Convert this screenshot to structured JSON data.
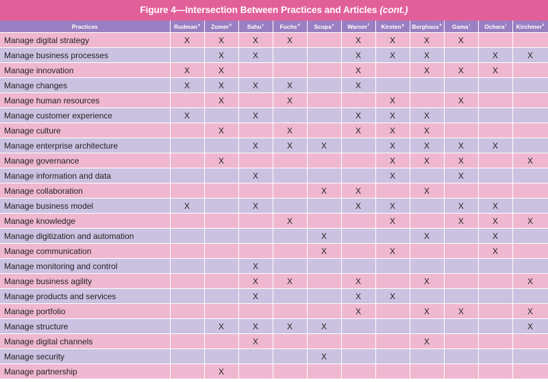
{
  "figure": {
    "title_main": "Figure 4—Intersection Between Practices and Articles",
    "title_cont": "(cont.)"
  },
  "table": {
    "columns": [
      {
        "label": "Practices",
        "sup": ""
      },
      {
        "label": "Rudman",
        "sup": "a"
      },
      {
        "label": "Zomer",
        "sup": "b"
      },
      {
        "label": "Sahu",
        "sup": "c"
      },
      {
        "label": "Fuchs",
        "sup": "d"
      },
      {
        "label": "Scupa",
        "sup": "e"
      },
      {
        "label": "Warner",
        "sup": "f"
      },
      {
        "label": "Kirsten",
        "sup": "g"
      },
      {
        "label": "Berghaus",
        "sup": "h"
      },
      {
        "label": "Gama",
        "sup": "i"
      },
      {
        "label": "Ochara",
        "sup": "j"
      },
      {
        "label": "Kirchmer",
        "sup": "k"
      }
    ],
    "rows": [
      {
        "practice": "Manage digital strategy",
        "marks": [
          "X",
          "X",
          "X",
          "X",
          "",
          "X",
          "X",
          "X",
          "X",
          "",
          ""
        ]
      },
      {
        "practice": "Manage business processes",
        "marks": [
          "",
          "X",
          "X",
          "",
          "",
          "X",
          "X",
          "X",
          "",
          "X",
          "X"
        ]
      },
      {
        "practice": "Manage innovation",
        "marks": [
          "X",
          "X",
          "",
          "",
          "",
          "X",
          "",
          "X",
          "X",
          "X",
          ""
        ]
      },
      {
        "practice": "Manage changes",
        "marks": [
          "X",
          "X",
          "X",
          "X",
          "",
          "X",
          "",
          "",
          "",
          "",
          ""
        ]
      },
      {
        "practice": "Manage human resources",
        "marks": [
          "",
          "X",
          "",
          "X",
          "",
          "",
          "X",
          "",
          "X",
          "",
          ""
        ]
      },
      {
        "practice": "Manage customer experience",
        "marks": [
          "X",
          "",
          "X",
          "",
          "",
          "X",
          "X",
          "X",
          "",
          "",
          ""
        ]
      },
      {
        "practice": "Manage culture",
        "marks": [
          "",
          "X",
          "",
          "X",
          "",
          "X",
          "X",
          "X",
          "",
          "",
          ""
        ]
      },
      {
        "practice": "Manage enterprise architecture",
        "marks": [
          "",
          "",
          "X",
          "X",
          "X",
          "",
          "X",
          "X",
          "X",
          "X",
          ""
        ]
      },
      {
        "practice": "Manage governance",
        "marks": [
          "",
          "X",
          "",
          "",
          "",
          "",
          "X",
          "X",
          "X",
          "",
          "X"
        ]
      },
      {
        "practice": "Manage information and data",
        "marks": [
          "",
          "",
          "X",
          "",
          "",
          "",
          "X",
          "",
          "X",
          "",
          ""
        ]
      },
      {
        "practice": "Manage collaboration",
        "marks": [
          "",
          "",
          "",
          "",
          "X",
          "X",
          "",
          "X",
          "",
          "",
          ""
        ]
      },
      {
        "practice": "Manage business model",
        "marks": [
          "X",
          "",
          "X",
          "",
          "",
          "X",
          "X",
          "",
          "X",
          "X",
          ""
        ]
      },
      {
        "practice": "Manage knowledge",
        "marks": [
          "",
          "",
          "",
          "X",
          "",
          "",
          "X",
          "",
          "X",
          "X",
          "X"
        ]
      },
      {
        "practice": "Manage digitization and automation",
        "marks": [
          "",
          "",
          "",
          "",
          "X",
          "",
          "",
          "X",
          "",
          "X",
          ""
        ]
      },
      {
        "practice": "Manage communication",
        "marks": [
          "",
          "",
          "",
          "",
          "X",
          "",
          "X",
          "",
          "",
          "X",
          ""
        ]
      },
      {
        "practice": "Manage monitoring and control",
        "marks": [
          "",
          "",
          "X",
          "",
          "",
          "",
          "",
          "",
          "",
          "",
          ""
        ]
      },
      {
        "practice": "Manage business agility",
        "marks": [
          "",
          "",
          "X",
          "X",
          "",
          "X",
          "",
          "X",
          "",
          "",
          "X"
        ]
      },
      {
        "practice": "Manage products and services",
        "marks": [
          "",
          "",
          "X",
          "",
          "",
          "X",
          "X",
          "",
          "",
          "",
          ""
        ]
      },
      {
        "practice": "Manage portfolio",
        "marks": [
          "",
          "",
          "",
          "",
          "",
          "X",
          "",
          "X",
          "X",
          "",
          "X"
        ]
      },
      {
        "practice": "Manage structure",
        "marks": [
          "",
          "X",
          "X",
          "X",
          "X",
          "",
          "",
          "",
          "",
          "",
          "X"
        ]
      },
      {
        "practice": "Manage digital channels",
        "marks": [
          "",
          "",
          "X",
          "",
          "",
          "",
          "",
          "X",
          "",
          "",
          ""
        ]
      },
      {
        "practice": "Manage security",
        "marks": [
          "",
          "",
          "",
          "",
          "X",
          "",
          "",
          "",
          "",
          "",
          ""
        ]
      },
      {
        "practice": "Manage partnership",
        "marks": [
          "",
          "X",
          "",
          "",
          "",
          "",
          "",
          "",
          "",
          "",
          ""
        ]
      }
    ]
  },
  "colors": {
    "title_bg": "#e2609a",
    "header_bg": "#9a7fc2",
    "row_pink": "#efb8d0",
    "row_lavender": "#cbc1e1"
  }
}
